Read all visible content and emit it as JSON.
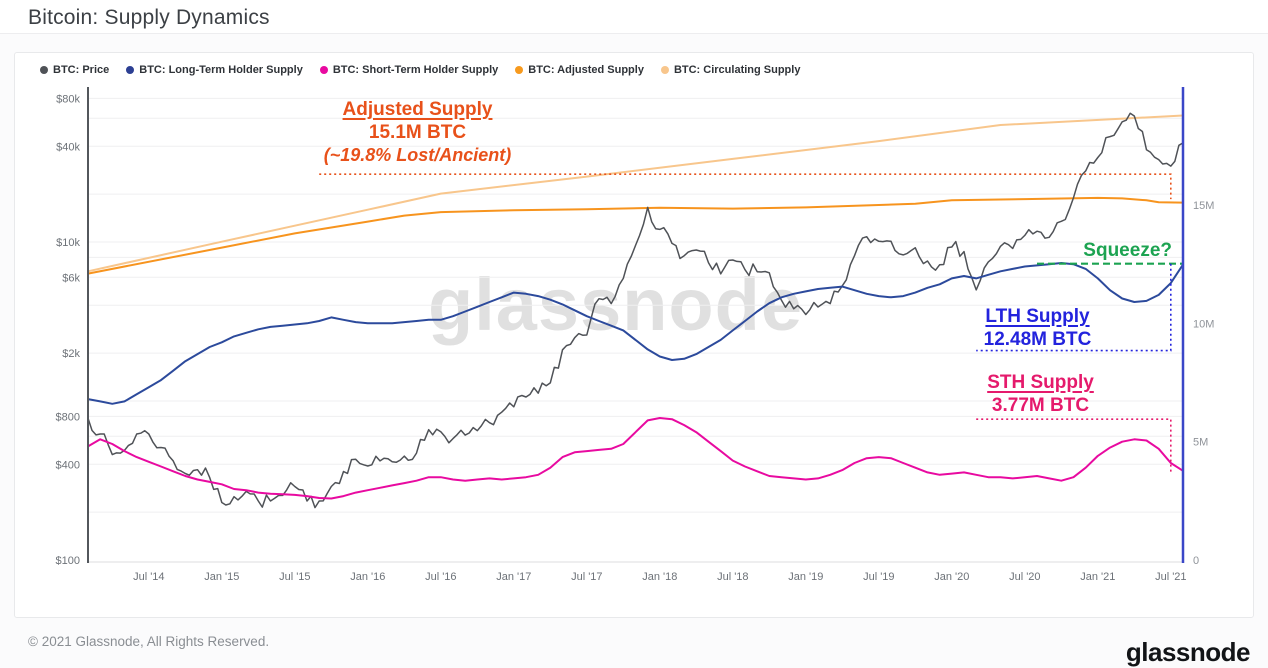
{
  "page": {
    "title": "Bitcoin: Supply Dynamics",
    "footer_left": "© 2021 Glassnode, All Rights Reserved.",
    "footer_logo": "glassnode",
    "watermark": "glassnode"
  },
  "legend": {
    "items": [
      {
        "label": "BTC: Price",
        "color": "#4f5257"
      },
      {
        "label": "BTC: Long-Term Holder Supply",
        "color": "#2c3f93"
      },
      {
        "label": "BTC: Short-Term Holder Supply",
        "color": "#e80aa0"
      },
      {
        "label": "BTC: Adjusted Supply",
        "color": "#f79a1e"
      },
      {
        "label": "BTC: Circulating Supply",
        "color": "#f8c68c"
      }
    ]
  },
  "chart_data": {
    "type": "line",
    "title": "Bitcoin: Supply Dynamics",
    "x_axis": {
      "range": [
        "2014-02",
        "2021-08"
      ],
      "ticks": [
        {
          "label": "Jul '14",
          "date": "2014-07"
        },
        {
          "label": "Jan '15",
          "date": "2015-01"
        },
        {
          "label": "Jul '15",
          "date": "2015-07"
        },
        {
          "label": "Jan '16",
          "date": "2016-01"
        },
        {
          "label": "Jul '16",
          "date": "2016-07"
        },
        {
          "label": "Jan '17",
          "date": "2017-01"
        },
        {
          "label": "Jul '17",
          "date": "2017-07"
        },
        {
          "label": "Jan '18",
          "date": "2018-01"
        },
        {
          "label": "Jul '18",
          "date": "2018-07"
        },
        {
          "label": "Jan '19",
          "date": "2019-01"
        },
        {
          "label": "Jul '19",
          "date": "2019-07"
        },
        {
          "label": "Jan '20",
          "date": "2020-01"
        },
        {
          "label": "Jul '20",
          "date": "2020-07"
        },
        {
          "label": "Jan '21",
          "date": "2021-01"
        },
        {
          "label": "Jul '21",
          "date": "2021-07"
        }
      ]
    },
    "y_axis_left": {
      "scale": "log",
      "unit": "USD",
      "ticks": [
        {
          "label": "$80k",
          "value": 80000
        },
        {
          "label": "$40k",
          "value": 40000
        },
        {
          "label": "$10k",
          "value": 10000
        },
        {
          "label": "$6k",
          "value": 6000
        },
        {
          "label": "$2k",
          "value": 2000
        },
        {
          "label": "$800",
          "value": 800
        },
        {
          "label": "$400",
          "value": 400
        },
        {
          "label": "$100",
          "value": 100
        }
      ],
      "gridline_values": [
        200,
        400,
        600,
        800,
        1000,
        2000,
        4000,
        6000,
        8000,
        10000,
        20000,
        40000,
        60000,
        80000
      ]
    },
    "y_axis_right": {
      "scale": "linear",
      "unit": "M BTC",
      "range": [
        0,
        19.9
      ],
      "ticks": [
        {
          "label": "15M",
          "value": 15
        },
        {
          "label": "10M",
          "value": 10
        },
        {
          "label": "5M",
          "value": 5
        },
        {
          "label": "0",
          "value": 0
        }
      ]
    },
    "series": [
      {
        "name": "BTC: Circulating Supply",
        "axis": "right",
        "color": "#f8c68c",
        "width": 2,
        "points": [
          [
            "2014-02",
            12.2
          ],
          [
            "2015-01",
            13.45
          ],
          [
            "2016-01",
            14.8
          ],
          [
            "2016-07",
            15.48
          ],
          [
            "2017-07",
            16.2
          ],
          [
            "2018-07",
            16.95
          ],
          [
            "2019-07",
            17.7
          ],
          [
            "2020-05",
            18.38
          ],
          [
            "2021-08",
            18.78
          ]
        ]
      },
      {
        "name": "BTC: Adjusted Supply",
        "axis": "right",
        "color": "#f7941e",
        "width": 2,
        "points": [
          [
            "2014-02",
            12.1
          ],
          [
            "2015-01",
            13.2
          ],
          [
            "2015-07",
            13.8
          ],
          [
            "2016-01",
            14.3
          ],
          [
            "2016-04",
            14.55
          ],
          [
            "2016-07",
            14.7
          ],
          [
            "2017-01",
            14.78
          ],
          [
            "2017-07",
            14.82
          ],
          [
            "2018-01",
            14.88
          ],
          [
            "2018-07",
            14.85
          ],
          [
            "2019-01",
            14.9
          ],
          [
            "2019-07",
            15.0
          ],
          [
            "2019-10",
            15.05
          ],
          [
            "2020-01",
            15.2
          ],
          [
            "2020-07",
            15.25
          ],
          [
            "2021-01",
            15.3
          ],
          [
            "2021-03",
            15.28
          ],
          [
            "2021-05",
            15.2
          ],
          [
            "2021-06",
            15.12
          ],
          [
            "2021-08",
            15.1
          ]
        ]
      },
      {
        "name": "BTC: Price",
        "axis": "left",
        "color": "#4f5257",
        "width": 1.5,
        "jitter": 0.045,
        "start": "2014-02",
        "monthly": [
          780,
          620,
          460,
          490,
          620,
          620,
          510,
          420,
          350,
          370,
          330,
          230,
          250,
          270,
          235,
          235,
          255,
          290,
          235,
          235,
          290,
          360,
          430,
          390,
          420,
          415,
          450,
          470,
          660,
          640,
          580,
          610,
          650,
          730,
          850,
          920,
          1060,
          1120,
          1300,
          2100,
          2500,
          2600,
          4400,
          4100,
          5900,
          9500,
          16500,
          12000,
          9800,
          8200,
          8900,
          7400,
          6300,
          7700,
          6700,
          6500,
          6400,
          4300,
          3800,
          3500,
          3900,
          4100,
          5300,
          8200,
          10800,
          10100,
          10100,
          8300,
          9200,
          7600,
          7200,
          9300,
          8700,
          5000,
          7500,
          9400,
          9100,
          11000,
          11700,
          10700,
          13500,
          19000,
          28000,
          34000,
          46000,
          57000,
          62000,
          38000,
          33000,
          30000,
          42000
        ]
      },
      {
        "name": "BTC: Short-Term Holder Supply",
        "axis": "right",
        "color": "#e80aa0",
        "width": 2,
        "start": "2014-02",
        "monthly": [
          4.8,
          5.1,
          4.9,
          4.6,
          4.35,
          4.15,
          3.95,
          3.75,
          3.55,
          3.4,
          3.3,
          3.2,
          3.0,
          2.95,
          2.85,
          2.8,
          2.78,
          2.75,
          2.7,
          2.62,
          2.6,
          2.7,
          2.85,
          2.95,
          3.05,
          3.15,
          3.25,
          3.35,
          3.5,
          3.5,
          3.4,
          3.35,
          3.4,
          3.45,
          3.4,
          3.45,
          3.5,
          3.6,
          3.9,
          4.35,
          4.55,
          4.6,
          4.65,
          4.7,
          4.9,
          5.4,
          5.9,
          6.0,
          5.95,
          5.7,
          5.4,
          5.0,
          4.6,
          4.2,
          3.95,
          3.75,
          3.55,
          3.5,
          3.45,
          3.4,
          3.45,
          3.6,
          3.8,
          4.1,
          4.3,
          4.35,
          4.3,
          4.1,
          3.9,
          3.7,
          3.6,
          3.65,
          3.7,
          3.6,
          3.5,
          3.5,
          3.45,
          3.5,
          3.55,
          3.45,
          3.35,
          3.5,
          3.9,
          4.4,
          4.75,
          5.0,
          5.1,
          5.05,
          4.7,
          4.1,
          3.77
        ]
      },
      {
        "name": "BTC: Long-Term Holder Supply",
        "axis": "right",
        "color": "#2c4a9c",
        "width": 2,
        "start": "2014-02",
        "monthly": [
          6.8,
          6.7,
          6.6,
          6.7,
          7.0,
          7.3,
          7.6,
          8.0,
          8.4,
          8.7,
          9.0,
          9.2,
          9.45,
          9.6,
          9.75,
          9.85,
          9.9,
          9.95,
          10.0,
          10.1,
          10.25,
          10.15,
          10.05,
          10.0,
          10.0,
          10.0,
          10.05,
          10.1,
          10.15,
          10.15,
          10.3,
          10.5,
          10.7,
          10.9,
          11.1,
          11.3,
          11.25,
          11.15,
          11.0,
          10.8,
          10.55,
          10.3,
          10.1,
          9.9,
          9.7,
          9.3,
          8.9,
          8.6,
          8.45,
          8.5,
          8.7,
          9.0,
          9.3,
          9.7,
          10.1,
          10.5,
          10.85,
          11.1,
          11.25,
          11.35,
          11.45,
          11.5,
          11.55,
          11.4,
          11.25,
          11.15,
          11.1,
          11.15,
          11.3,
          11.5,
          11.65,
          11.9,
          12.0,
          11.9,
          12.05,
          12.2,
          12.3,
          12.4,
          12.45,
          12.5,
          12.55,
          12.5,
          12.3,
          11.9,
          11.4,
          11.05,
          10.9,
          10.95,
          11.2,
          11.7,
          12.48
        ]
      }
    ],
    "callouts": [
      {
        "name": "adjusted-supply-callout",
        "color": "#e8511a",
        "dash": "2 3",
        "width": 1.6,
        "points": [
          [
            "2015-09",
            16.3
          ],
          [
            "2021-07",
            16.3
          ],
          [
            "2021-07",
            15.25
          ]
        ]
      },
      {
        "name": "squeeze-callout",
        "color": "#1ca351",
        "dash": "7 4",
        "width": 2.2,
        "points": [
          [
            "2020-08",
            12.52
          ],
          [
            "2021-08",
            12.52
          ]
        ]
      },
      {
        "name": "lth-supply-callout",
        "color": "#2323dd",
        "dash": "2 3",
        "width": 1.6,
        "points": [
          [
            "2021-07",
            12.52
          ],
          [
            "2021-07",
            8.85
          ],
          [
            "2020-03",
            8.85
          ]
        ]
      },
      {
        "name": "sth-supply-callout",
        "color": "#e51a6c",
        "dash": "2 3",
        "width": 1.6,
        "points": [
          [
            "2020-03",
            5.95
          ],
          [
            "2021-07",
            5.95
          ],
          [
            "2021-07",
            3.7
          ]
        ]
      }
    ],
    "annotations": [
      {
        "id": "adjusted",
        "color": "#e8511a",
        "lines": [
          "Adjusted Supply",
          "15.1M BTC",
          "(~19.8% Lost/Ancient)"
        ]
      },
      {
        "id": "squeeze",
        "color": "#1ca351",
        "lines": [
          "Squeeze?"
        ]
      },
      {
        "id": "lth",
        "color": "#2323dd",
        "lines": [
          "LTH Supply",
          "12.48M BTC"
        ]
      },
      {
        "id": "sth",
        "color": "#e51a6c",
        "lines": [
          "STH Supply",
          "3.77M BTC"
        ]
      }
    ],
    "legend_position": "top-left",
    "grid": true
  }
}
